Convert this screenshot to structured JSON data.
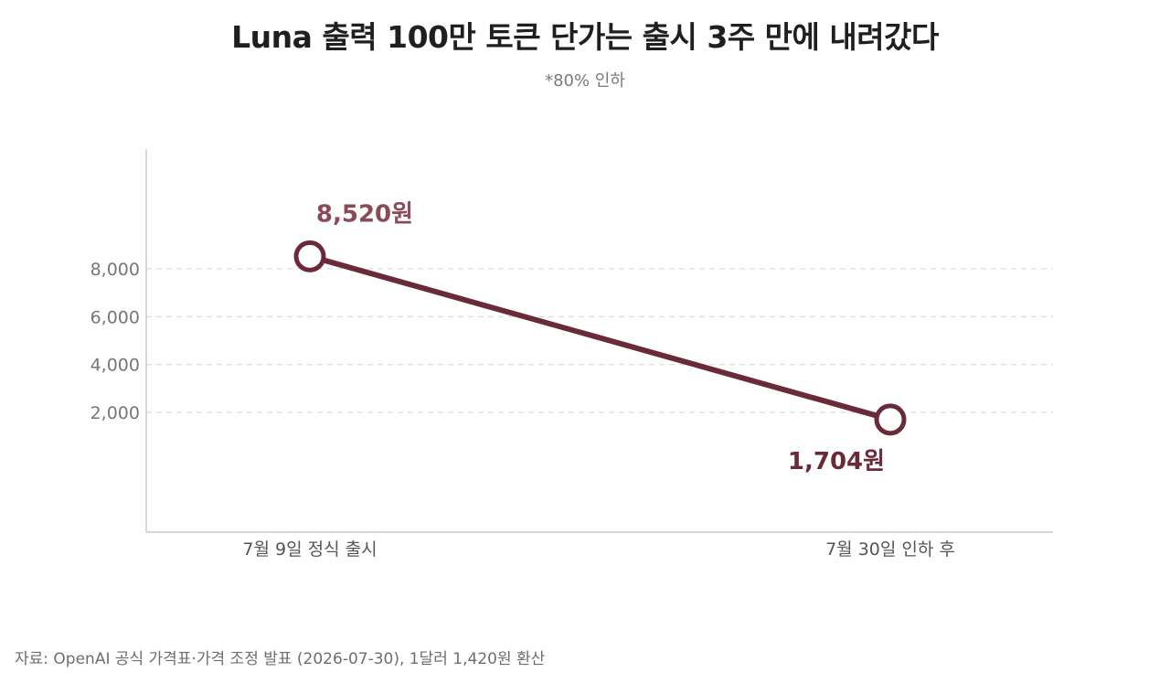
{
  "title": "Luna 출력 100만 토큰 단가는 출시 3주 만에 내려갔다",
  "subtitle": "*80% 인하",
  "source": "자료: OpenAI 공식 가격표·가격 조정 발표 (2026-07-30), 1달러 1,420원 환산",
  "colors": {
    "line": "#6b2a3a",
    "label_high": "#8b4a5a",
    "label_low": "#6b2a3a",
    "grid": "#d9d9d9",
    "axis": "#cccccc",
    "tick_text": "#777777"
  },
  "chart_data": {
    "type": "line",
    "title": "Luna 출력 100만 토큰 단가는 출시 3주 만에 내려갔다",
    "subtitle": "*80% 인하",
    "categories": [
      "7월 9일 정식 출시",
      "7월 30일 인하 후"
    ],
    "series": [
      {
        "values": [
          8520,
          1704
        ],
        "data_labels": [
          "8,520원",
          "1,704원"
        ]
      }
    ],
    "y_ticks": [
      2000,
      4000,
      6000,
      8000
    ],
    "y_tick_labels": [
      "2,000",
      "4,000",
      "6,000",
      "8,000"
    ],
    "ylim": [
      -3000,
      13000
    ],
    "grid": true,
    "xlabel": "",
    "ylabel": ""
  }
}
